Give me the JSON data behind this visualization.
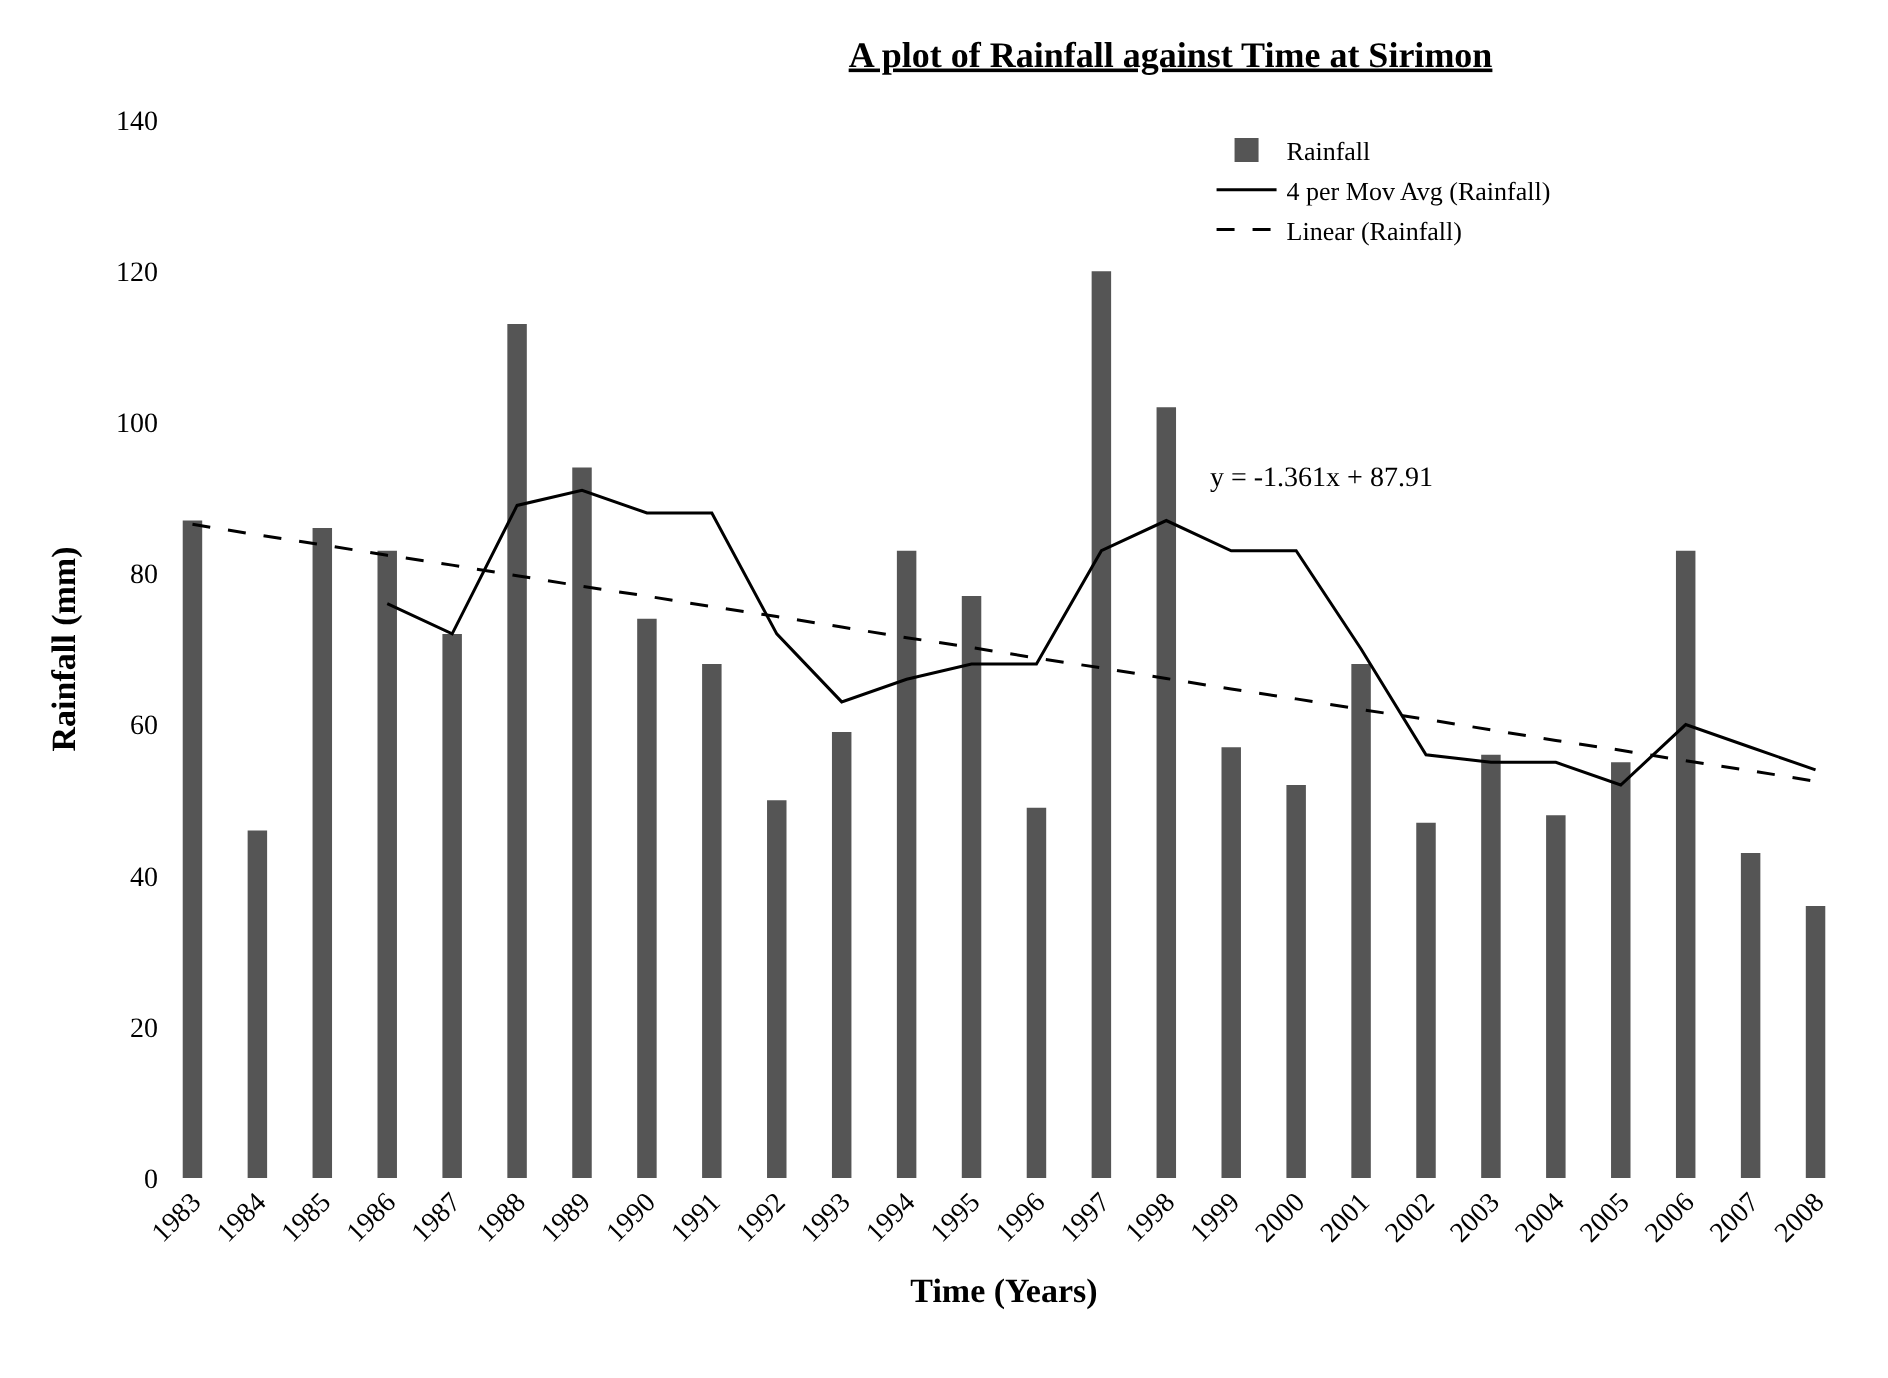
{
  "chart_data": {
    "type": "bar",
    "title": "A plot of Rainfall against Time at Sirimon",
    "xlabel": "Time (Years)",
    "ylabel": "Rainfall (mm)",
    "categories": [
      "1983",
      "1984",
      "1985",
      "1986",
      "1987",
      "1988",
      "1989",
      "1990",
      "1991",
      "1992",
      "1993",
      "1994",
      "1995",
      "1996",
      "1997",
      "1998",
      "1999",
      "2000",
      "2001",
      "2002",
      "2003",
      "2004",
      "2005",
      "2006",
      "2007",
      "2008"
    ],
    "series": [
      {
        "name": "Rainfall",
        "color": "#555555",
        "values": [
          87,
          46,
          86,
          83,
          72,
          113,
          94,
          74,
          68,
          50,
          59,
          83,
          77,
          49,
          120,
          102,
          57,
          52,
          68,
          47,
          56,
          48,
          55,
          83,
          43,
          36
        ]
      },
      {
        "name": "4 per Mov Avg (Rainfall)",
        "type": "line",
        "color": "#000000",
        "line_style": "solid",
        "values": [
          null,
          null,
          null,
          76,
          72,
          89,
          91,
          88,
          88,
          72,
          63,
          66,
          68,
          68,
          83,
          87,
          83,
          83,
          70,
          56,
          55,
          55,
          52,
          60,
          57,
          54
        ]
      },
      {
        "name": "Linear (Rainfall)",
        "type": "line",
        "color": "#000000",
        "line_style": "dashed",
        "values": [
          86.5,
          85.1,
          83.8,
          82.4,
          81.1,
          79.7,
          78.3,
          77.0,
          75.6,
          74.3,
          72.9,
          71.5,
          70.2,
          68.8,
          67.5,
          66.1,
          64.7,
          63.4,
          62.0,
          60.7,
          59.3,
          57.9,
          56.6,
          55.2,
          53.9,
          52.5
        ]
      }
    ],
    "annotations": [
      "y = -1.361x + 87.91"
    ],
    "ylim": [
      0,
      140
    ],
    "yticks": [
      0,
      20,
      40,
      60,
      80,
      100,
      120,
      140
    ],
    "legend": "top right"
  }
}
